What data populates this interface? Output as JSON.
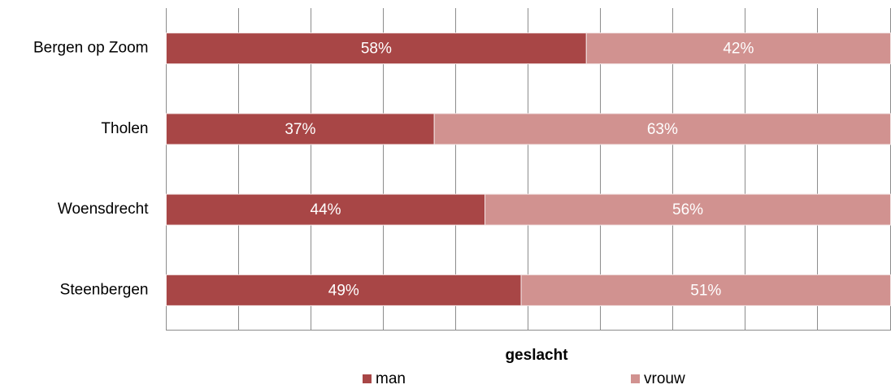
{
  "chart_data": {
    "type": "stacked-bar-horizontal",
    "x_label": "geslacht",
    "categories": [
      "Bergen op Zoom",
      "Tholen",
      "Woensdrecht",
      "Steenbergen"
    ],
    "series": [
      {
        "name": "man",
        "color": "#a84646",
        "values": [
          58,
          37,
          44,
          49
        ],
        "value_labels": [
          "58%",
          "37%",
          "44%",
          "49%"
        ]
      },
      {
        "name": "vrouw",
        "color": "#d19290",
        "values": [
          42,
          63,
          56,
          51
        ],
        "value_labels": [
          "42%",
          "63%",
          "56%",
          "51%"
        ]
      }
    ],
    "xlim": [
      0,
      100
    ],
    "xticks": [
      0,
      10,
      20,
      30,
      40,
      50,
      60,
      70,
      80,
      90,
      100
    ],
    "grid": true,
    "legend": "bottom"
  }
}
